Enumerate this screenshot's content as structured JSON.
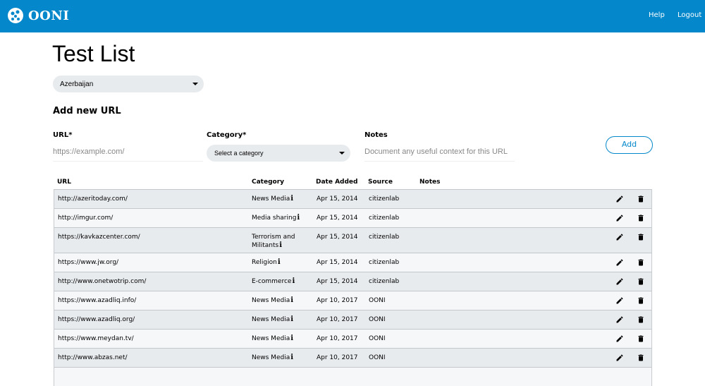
{
  "header": {
    "brand": "OONI",
    "help": "Help",
    "logout": "Logout",
    "color": "#0588cb"
  },
  "page": {
    "title": "Test List",
    "country": "Azerbaijan"
  },
  "form": {
    "heading": "Add new URL",
    "url_label": "URL*",
    "url_placeholder": "https://example.com/",
    "category_label": "Category*",
    "category_placeholder": "Select a category",
    "notes_label": "Notes",
    "notes_placeholder": "Document any useful context for this URL",
    "add": "Add"
  },
  "table": {
    "columns": [
      "URL",
      "Category",
      "Date Added",
      "Source",
      "Notes"
    ],
    "rows": [
      {
        "url": "http://azeritoday.com/",
        "category": "News Media",
        "date": "Apr 15, 2014",
        "source": "citizenlab",
        "notes": ""
      },
      {
        "url": "http://imgur.com/",
        "category": "Media sharing",
        "date": "Apr 15, 2014",
        "source": "citizenlab",
        "notes": ""
      },
      {
        "url": "https://kavkazcenter.com/",
        "category": "Terrorism and Militants",
        "date": "Apr 15, 2014",
        "source": "citizenlab",
        "notes": ""
      },
      {
        "url": "https://www.jw.org/",
        "category": "Religion",
        "date": "Apr 15, 2014",
        "source": "citizenlab",
        "notes": ""
      },
      {
        "url": "http://www.onetwotrip.com/",
        "category": "E-commerce",
        "date": "Apr 15, 2014",
        "source": "citizenlab",
        "notes": ""
      },
      {
        "url": "https://www.azadliq.info/",
        "category": "News Media",
        "date": "Apr 10, 2017",
        "source": "OONI",
        "notes": ""
      },
      {
        "url": "https://www.azadliq.org/",
        "category": "News Media",
        "date": "Apr 10, 2017",
        "source": "OONI",
        "notes": ""
      },
      {
        "url": "https://www.meydan.tv/",
        "category": "News Media",
        "date": "Apr 10, 2017",
        "source": "OONI",
        "notes": ""
      },
      {
        "url": "http://www.abzas.net/",
        "category": "News Media",
        "date": "Apr 10, 2017",
        "source": "OONI",
        "notes": ""
      }
    ],
    "info_glyph": "i"
  }
}
